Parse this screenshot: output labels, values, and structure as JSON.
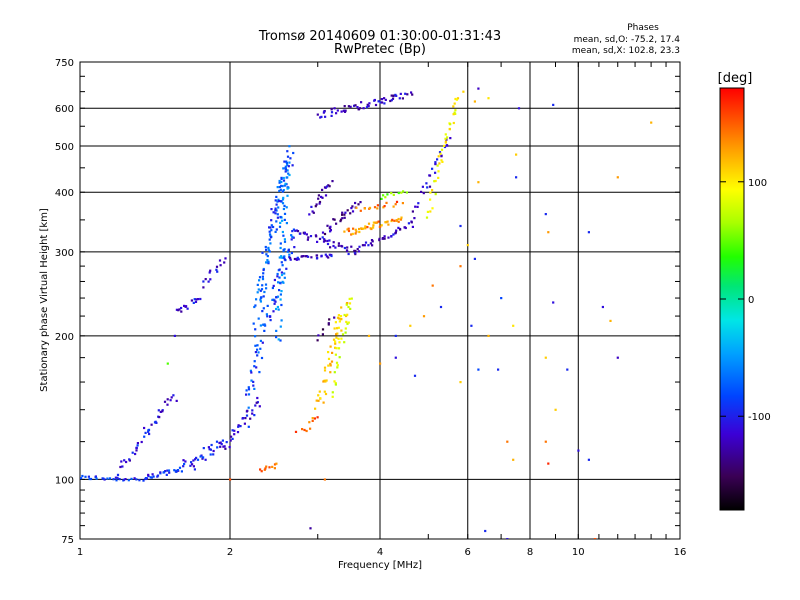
{
  "chart_data": {
    "type": "scatter",
    "title": "Tromsø 20140609 01:30:00-01:31:43",
    "subtitle": "RwPretec (Bp)",
    "xlabel": "Frequency [MHz]",
    "ylabel": "Stationary phase Virtual Height [km]",
    "x_scale": "log",
    "y_scale": "log",
    "xlim": [
      1,
      16
    ],
    "ylim": [
      75,
      750
    ],
    "x_ticks": [
      1,
      2,
      4,
      6,
      8,
      10,
      16
    ],
    "x_tick_labels": [
      "1",
      "2",
      "4",
      "6",
      "8",
      "10",
      "16"
    ],
    "y_ticks": [
      75,
      100,
      200,
      300,
      400,
      500,
      600,
      750
    ],
    "y_tick_labels": [
      "75",
      "100",
      "200",
      "300",
      "400",
      "500",
      "600",
      "750"
    ],
    "grid": true,
    "phase_info": {
      "heading": "Phases",
      "line1": "mean, sd,O: -75.2, 17.4",
      "line2": "mean, sd,X: 102.8, 23.3"
    },
    "colorbar": {
      "label": "[deg]",
      "range": [
        -180,
        180
      ],
      "ticks": [
        100,
        0,
        -100
      ],
      "tick_labels": [
        "100",
        "0",
        "-100"
      ]
    },
    "series": [
      {
        "traces": [
          {
            "from": [
              1.0,
              101
            ],
            "to": [
              1.35,
              100
            ],
            "phase": -95,
            "n": 30,
            "spread": 2
          },
          {
            "from": [
              1.35,
              100
            ],
            "to": [
              1.6,
              106
            ],
            "phase": -100,
            "n": 26,
            "spread": 3
          },
          {
            "from": [
              1.6,
              106
            ],
            "to": [
              1.95,
              120
            ],
            "phase": -105,
            "n": 34,
            "spread": 6
          },
          {
            "from": [
              1.2,
              103
            ],
            "to": [
              1.55,
              150
            ],
            "phase": -110,
            "n": 40,
            "spread": 8
          },
          {
            "from": [
              1.95,
              118
            ],
            "to": [
              2.3,
              145
            ],
            "phase": -115,
            "n": 30,
            "spread": 7
          },
          {
            "from": [
              1.55,
              225
            ],
            "to": [
              1.75,
              240
            ],
            "phase": -110,
            "n": 16,
            "spread": 6
          },
          {
            "from": [
              1.75,
              255
            ],
            "to": [
              1.95,
              290
            ],
            "phase": -115,
            "n": 14,
            "spread": 8
          },
          {
            "from": [
              2.25,
              210
            ],
            "to": [
              2.65,
              480
            ],
            "phase": -85,
            "n": 110,
            "spread": 40
          },
          {
            "from": [
              2.15,
              140
            ],
            "to": [
              2.7,
              320
            ],
            "phase": -90,
            "n": 80,
            "spread": 35
          },
          {
            "from": [
              2.5,
              200
            ],
            "to": [
              2.6,
              440
            ],
            "phase": -70,
            "n": 60,
            "spread": 30
          },
          {
            "from": [
              2.65,
              290
            ],
            "to": [
              3.2,
              295
            ],
            "phase": -115,
            "n": 26,
            "spread": 5
          },
          {
            "from": [
              2.7,
              330
            ],
            "to": [
              3.6,
              300
            ],
            "phase": -120,
            "n": 40,
            "spread": 10
          },
          {
            "from": [
              3.1,
              330
            ],
            "to": [
              3.6,
              380
            ],
            "phase": -130,
            "n": 28,
            "spread": 12
          },
          {
            "from": [
              2.9,
              360
            ],
            "to": [
              3.2,
              420
            ],
            "phase": -125,
            "n": 20,
            "spread": 10
          },
          {
            "from": [
              3.5,
              300
            ],
            "to": [
              4.6,
              340
            ],
            "phase": -120,
            "n": 34,
            "spread": 6
          },
          {
            "from": [
              4.6,
              340
            ],
            "to": [
              5.5,
              520
            ],
            "phase": -115,
            "n": 30,
            "spread": 20
          },
          {
            "from": [
              3.4,
              330
            ],
            "to": [
              4.4,
              350
            ],
            "phase": 140,
            "n": 44,
            "spread": 12
          },
          {
            "from": [
              3.6,
              370
            ],
            "to": [
              4.4,
              380
            ],
            "phase": 150,
            "n": 16,
            "spread": 10
          },
          {
            "from": [
              4.0,
              390
            ],
            "to": [
              4.5,
              400
            ],
            "phase": 60,
            "n": 10,
            "spread": 6
          },
          {
            "from": [
              5.0,
              360
            ],
            "to": [
              5.8,
              640
            ],
            "phase": 100,
            "n": 40,
            "spread": 25
          },
          {
            "from": [
              3.0,
              580
            ],
            "to": [
              4.6,
              640
            ],
            "phase": -120,
            "n": 60,
            "spread": 18
          },
          {
            "from": [
              3.0,
              140
            ],
            "to": [
              3.4,
              230
            ],
            "phase": 120,
            "n": 50,
            "spread": 14
          },
          {
            "from": [
              3.2,
              150
            ],
            "to": [
              3.5,
              240
            ],
            "phase": 90,
            "n": 30,
            "spread": 14
          },
          {
            "from": [
              3.0,
              195
            ],
            "to": [
              3.2,
              220
            ],
            "phase": -140,
            "n": 8,
            "spread": 5
          },
          {
            "from": [
              2.75,
              125
            ],
            "to": [
              3.0,
              135
            ],
            "phase": 150,
            "n": 10,
            "spread": 4
          },
          {
            "from": [
              2.3,
              105
            ],
            "to": [
              2.5,
              107
            ],
            "phase": 155,
            "n": 10,
            "spread": 2
          }
        ]
      }
    ],
    "scatter_points": [
      [
        6.3,
        660,
        -120
      ],
      [
        6.2,
        620,
        130
      ],
      [
        6.6,
        630,
        110
      ],
      [
        7.6,
        600,
        -110
      ],
      [
        8.9,
        610,
        -100
      ],
      [
        7.5,
        480,
        120
      ],
      [
        6.3,
        420,
        130
      ],
      [
        7.5,
        430,
        -100
      ],
      [
        8.6,
        360,
        -100
      ],
      [
        8.7,
        330,
        140
      ],
      [
        6.2,
        290,
        -100
      ],
      [
        5.8,
        280,
        150
      ],
      [
        7.0,
        240,
        -90
      ],
      [
        6.1,
        210,
        -100
      ],
      [
        7.4,
        210,
        110
      ],
      [
        8.9,
        235,
        -110
      ],
      [
        8.6,
        180,
        120
      ],
      [
        6.6,
        200,
        130
      ],
      [
        6.3,
        170,
        -90
      ],
      [
        5.8,
        160,
        120
      ],
      [
        6.9,
        170,
        -100
      ],
      [
        5.3,
        230,
        -100
      ],
      [
        4.9,
        220,
        140
      ],
      [
        4.6,
        210,
        120
      ],
      [
        4.3,
        200,
        -100
      ],
      [
        3.8,
        200,
        130
      ],
      [
        4.3,
        180,
        -110
      ],
      [
        4.0,
        175,
        140
      ],
      [
        4.7,
        165,
        -100
      ],
      [
        5.1,
        255,
        150
      ],
      [
        9.0,
        140,
        120
      ],
      [
        8.6,
        120,
        150
      ],
      [
        8.7,
        108,
        170
      ],
      [
        7.2,
        120,
        150
      ],
      [
        7.4,
        110,
        130
      ],
      [
        10.0,
        115,
        -110
      ],
      [
        10.5,
        110,
        -100
      ],
      [
        12.0,
        180,
        -120
      ],
      [
        11.2,
        230,
        -110
      ],
      [
        11.6,
        215,
        130
      ],
      [
        14.0,
        560,
        130
      ],
      [
        12.0,
        430,
        140
      ],
      [
        10.5,
        330,
        -100
      ],
      [
        2.9,
        79,
        -130
      ],
      [
        3.1,
        100,
        150
      ],
      [
        2.0,
        100,
        160
      ],
      [
        1.55,
        200,
        -110
      ],
      [
        1.5,
        175,
        50
      ],
      [
        1.7,
        105,
        -100
      ],
      [
        10.8,
        75,
        160
      ],
      [
        7.2,
        75,
        -110
      ],
      [
        6.5,
        78,
        -100
      ],
      [
        9.5,
        170,
        -100
      ],
      [
        6.0,
        310,
        120
      ],
      [
        5.8,
        340,
        -100
      ]
    ]
  }
}
